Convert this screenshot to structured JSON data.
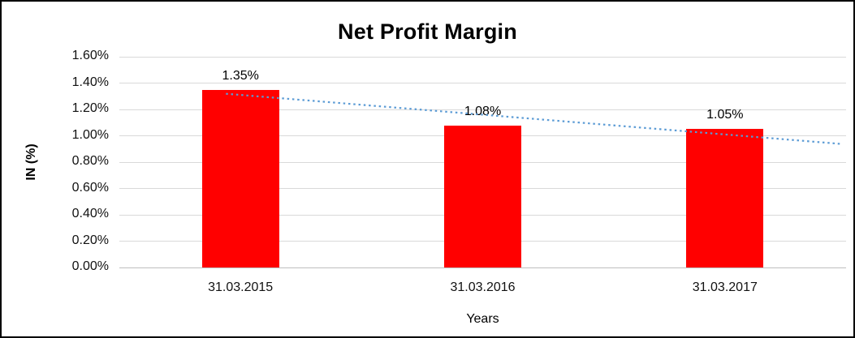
{
  "chart_data": {
    "type": "bar",
    "title": "Net Profit Margin",
    "xlabel": "Years",
    "ylabel": "IN (%)",
    "categories": [
      "31.03.2015",
      "31.03.2016",
      "31.03.2017"
    ],
    "values": [
      1.35,
      1.08,
      1.05
    ],
    "data_labels": [
      "1.35%",
      "1.08%",
      "1.05%"
    ],
    "ylim": [
      0,
      1.6
    ],
    "ytick_step": 0.2,
    "ytick_labels": [
      "0.00%",
      "0.20%",
      "0.40%",
      "0.60%",
      "0.80%",
      "1.00%",
      "1.20%",
      "1.40%",
      "1.60%"
    ],
    "grid": true,
    "legend": "none",
    "bar_color": "#FF0000",
    "gridline_color": "#d9d9d9",
    "background_color": "#FFFFFF",
    "border_color": "#000000",
    "trendline": {
      "type": "linear",
      "style": "dotted",
      "color": "#5B9BD5"
    }
  }
}
